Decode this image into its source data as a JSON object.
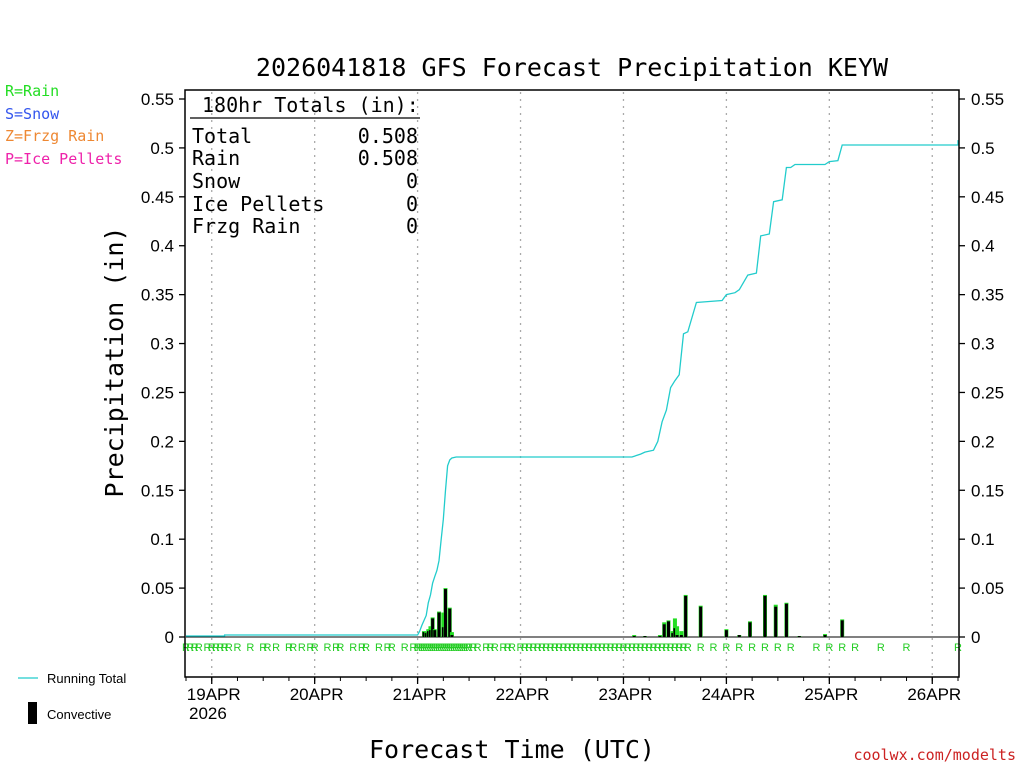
{
  "chart_data": {
    "type": "bar+line",
    "title": "2026041818 GFS Forecast Precipitation KEYW",
    "xlabel": "Forecast Time (UTC)",
    "ylabel": "Precipitation (in)",
    "ylim": [
      0,
      0.56
    ],
    "yticks": [
      "0",
      "0.05",
      "0.1",
      "0.15",
      "0.2",
      "0.25",
      "0.3",
      "0.35",
      "0.4",
      "0.45",
      "0.5",
      "0.55"
    ],
    "xlim_hours": [
      0,
      180
    ],
    "date_ticks": [
      {
        "label": "19APR",
        "hour": 6
      },
      {
        "label": "20APR",
        "hour": 30
      },
      {
        "label": "21APR",
        "hour": 54
      },
      {
        "label": "22APR",
        "hour": 78
      },
      {
        "label": "23APR",
        "hour": 102
      },
      {
        "label": "24APR",
        "hour": 126
      },
      {
        "label": "25APR",
        "hour": 150
      },
      {
        "label": "26APR",
        "hour": 174
      }
    ],
    "year_label": "2026",
    "legend_types": [
      {
        "text": "R=Rain",
        "color": "#22dd22"
      },
      {
        "text": "S=Snow",
        "color": "#3355ee"
      },
      {
        "text": "Z=Frzg Rain",
        "color": "#ee8833"
      },
      {
        "text": "P=Ice Pellets",
        "color": "#ee22aa"
      }
    ],
    "legend_series": [
      {
        "text": "Running Total",
        "color": "#22cccc"
      },
      {
        "text": "Convective",
        "color": "#000000"
      }
    ],
    "totals": {
      "header": "180hr Totals (in):",
      "rows": [
        {
          "label": "Total",
          "value": "0.508"
        },
        {
          "label": "Rain",
          "value": "0.508"
        },
        {
          "label": "Snow",
          "value": "0"
        },
        {
          "label": "Ice Pellets",
          "value": "0"
        },
        {
          "label": "Frzg Rain",
          "value": "0"
        }
      ]
    },
    "running_total": {
      "color": "#22cccc",
      "points": [
        [
          0,
          0.001
        ],
        [
          9,
          0.001
        ],
        [
          9,
          0.002
        ],
        [
          54,
          0.002
        ],
        [
          54.5,
          0.006
        ],
        [
          55,
          0.012
        ],
        [
          56,
          0.022
        ],
        [
          56.5,
          0.035
        ],
        [
          57,
          0.043
        ],
        [
          57.5,
          0.055
        ],
        [
          58,
          0.062
        ],
        [
          58.5,
          0.068
        ],
        [
          59,
          0.078
        ],
        [
          59.5,
          0.1
        ],
        [
          60,
          0.12
        ],
        [
          60.5,
          0.15
        ],
        [
          61,
          0.175
        ],
        [
          61.5,
          0.181
        ],
        [
          62,
          0.183
        ],
        [
          63,
          0.184
        ],
        [
          104,
          0.184
        ],
        [
          106,
          0.187
        ],
        [
          107,
          0.189
        ],
        [
          109,
          0.191
        ],
        [
          110,
          0.2
        ],
        [
          111,
          0.22
        ],
        [
          112,
          0.232
        ],
        [
          113,
          0.255
        ],
        [
          114,
          0.262
        ],
        [
          115,
          0.268
        ],
        [
          116,
          0.31
        ],
        [
          117,
          0.312
        ],
        [
          119,
          0.342
        ],
        [
          122,
          0.343
        ],
        [
          125,
          0.344
        ],
        [
          126,
          0.35
        ],
        [
          128,
          0.352
        ],
        [
          129,
          0.355
        ],
        [
          131,
          0.37
        ],
        [
          133,
          0.372
        ],
        [
          134,
          0.41
        ],
        [
          136,
          0.412
        ],
        [
          137,
          0.445
        ],
        [
          139,
          0.447
        ],
        [
          140,
          0.48
        ],
        [
          141,
          0.48
        ],
        [
          142,
          0.483
        ],
        [
          149,
          0.483
        ],
        [
          150,
          0.486
        ],
        [
          152,
          0.487
        ],
        [
          153,
          0.503
        ],
        [
          180,
          0.503
        ],
        [
          180,
          0.508
        ]
      ]
    },
    "bars": [
      {
        "hour": 55.5,
        "total": 0.006,
        "conv": 0.005
      },
      {
        "hour": 56.0,
        "total": 0.005,
        "conv": 0.004
      },
      {
        "hour": 56.5,
        "total": 0.008,
        "conv": 0.006
      },
      {
        "hour": 57.0,
        "total": 0.011,
        "conv": 0.007
      },
      {
        "hour": 57.5,
        "total": 0.02,
        "conv": 0.019
      },
      {
        "hour": 58.0,
        "total": 0.008,
        "conv": 0.007
      },
      {
        "hour": 59.0,
        "total": 0.026,
        "conv": 0.025
      },
      {
        "hour": 60.0,
        "total": 0.025,
        "conv": 0.01
      },
      {
        "hour": 60.5,
        "total": 0.05,
        "conv": 0.049
      },
      {
        "hour": 61.5,
        "total": 0.03,
        "conv": 0.029
      },
      {
        "hour": 62.0,
        "total": 0.005,
        "conv": 0.002
      },
      {
        "hour": 104.5,
        "total": 0.002,
        "conv": 0.001
      },
      {
        "hour": 107.0,
        "total": 0.001,
        "conv": 0.001
      },
      {
        "hour": 110.5,
        "total": 0.002,
        "conv": 0.001
      },
      {
        "hour": 111.5,
        "total": 0.015,
        "conv": 0.013
      },
      {
        "hour": 112.5,
        "total": 0.017,
        "conv": 0.016
      },
      {
        "hour": 113.5,
        "total": 0.006,
        "conv": 0.004
      },
      {
        "hour": 114.0,
        "total": 0.019,
        "conv": 0.009
      },
      {
        "hour": 114.5,
        "total": 0.011,
        "conv": 0.002
      },
      {
        "hour": 115.5,
        "total": 0.006,
        "conv": 0.002
      },
      {
        "hour": 116.5,
        "total": 0.043,
        "conv": 0.042
      },
      {
        "hour": 120.0,
        "total": 0.032,
        "conv": 0.031
      },
      {
        "hour": 126.0,
        "total": 0.008,
        "conv": 0.007
      },
      {
        "hour": 129.0,
        "total": 0.002,
        "conv": 0.002
      },
      {
        "hour": 131.5,
        "total": 0.016,
        "conv": 0.015
      },
      {
        "hour": 135.0,
        "total": 0.043,
        "conv": 0.042
      },
      {
        "hour": 137.5,
        "total": 0.033,
        "conv": 0.031
      },
      {
        "hour": 140.0,
        "total": 0.035,
        "conv": 0.034
      },
      {
        "hour": 143.0,
        "total": 0.001,
        "conv": 0.001
      },
      {
        "hour": 149.0,
        "total": 0.003,
        "conv": 0.002
      },
      {
        "hour": 153.0,
        "total": 0.018,
        "conv": 0.017
      }
    ],
    "ptype_marks": {
      "symbol": "R",
      "hours": [
        0,
        1,
        2,
        3,
        5,
        6,
        7,
        8,
        9,
        10,
        12,
        15,
        18,
        19,
        21,
        24,
        25,
        27,
        29,
        30,
        33,
        35,
        36,
        39,
        41,
        42,
        45,
        47,
        48,
        51,
        53,
        54,
        54.5,
        55,
        55.5,
        56,
        56.5,
        57,
        57.5,
        58,
        58.5,
        59,
        59.5,
        60,
        60.5,
        61,
        61.5,
        62,
        62.5,
        63,
        63.5,
        64,
        64.5,
        65,
        65.5,
        66,
        67,
        68,
        70,
        71,
        72,
        74,
        75,
        76,
        78,
        79,
        80,
        81,
        82,
        83,
        84,
        85,
        86,
        87,
        88,
        89,
        90,
        91,
        92,
        93,
        94,
        95,
        96,
        97,
        98,
        99,
        100,
        101,
        102,
        103,
        104,
        105,
        106,
        107,
        108,
        109,
        110,
        111,
        112,
        113,
        114,
        115,
        116,
        117,
        120,
        123,
        126,
        129,
        132,
        135,
        138,
        141,
        147,
        150,
        153,
        156,
        162,
        168,
        180
      ]
    }
  },
  "credit": "coolwx.com/modelts"
}
